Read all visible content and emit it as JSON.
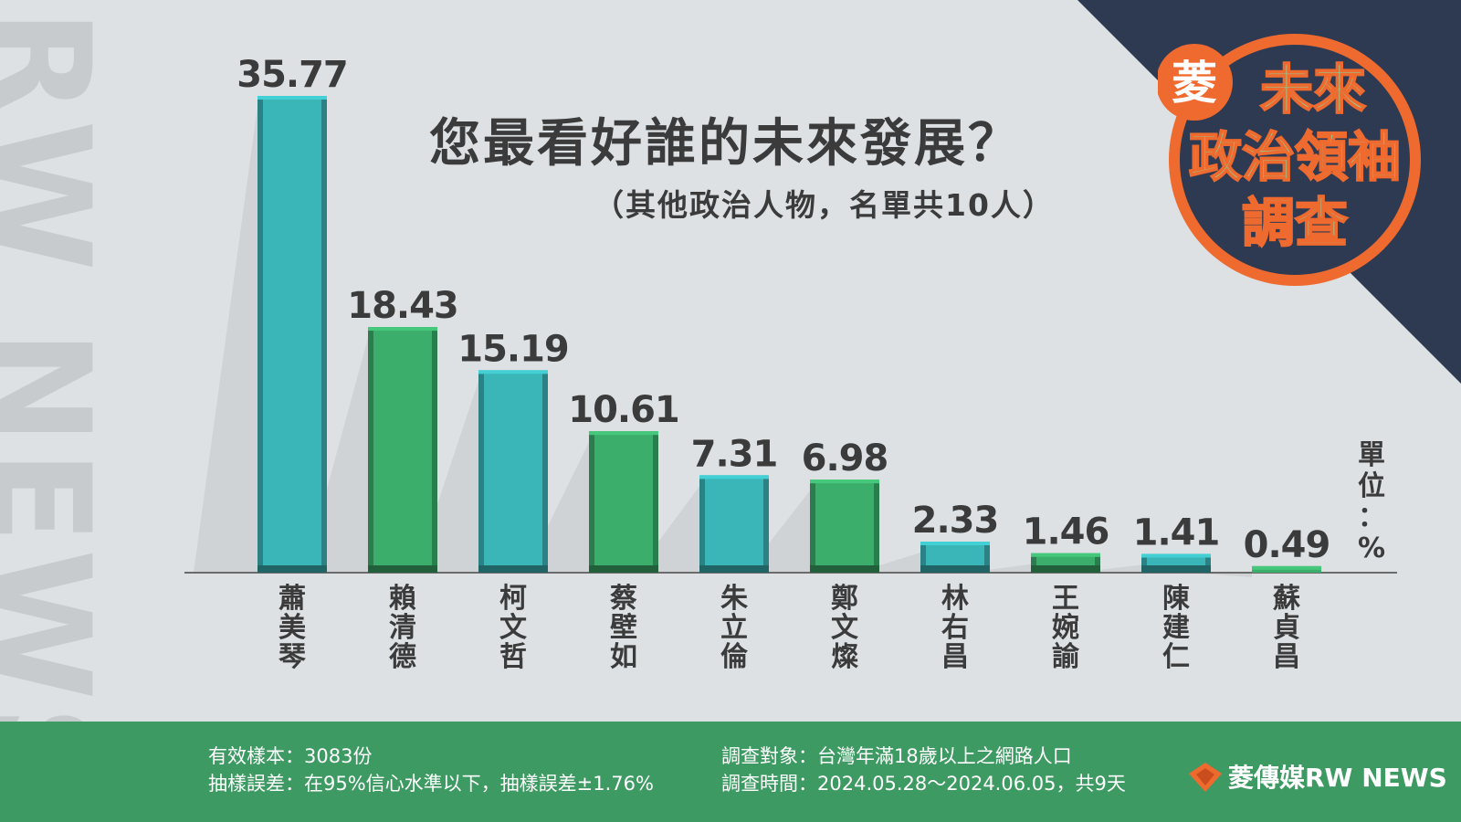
{
  "watermark": "RW NEWS",
  "badge": {
    "mark": "菱",
    "line1": "未來",
    "line2": "政治領袖",
    "line3": "調查"
  },
  "title": "您最看好誰的未來發展？",
  "subtitle": "（其他政治人物，名單共10人）",
  "unit": [
    "單",
    "位",
    "：",
    "%"
  ],
  "colors": {
    "teal": "#3ab5b8",
    "green": "#3cae6b",
    "navy": "#2d3a52",
    "orange": "#ef6a2e",
    "footer": "#3e9a63"
  },
  "chart_data": {
    "type": "bar",
    "categories": [
      "蕭美琴",
      "賴清德",
      "柯文哲",
      "蔡壁如",
      "朱立倫",
      "鄭文燦",
      "林右昌",
      "王婉諭",
      "陳建仁",
      "蘇貞昌"
    ],
    "values": [
      35.77,
      18.43,
      15.19,
      10.61,
      7.31,
      6.98,
      2.33,
      1.46,
      1.41,
      0.49
    ],
    "value_labels": [
      "35.77",
      "18.43",
      "15.19",
      "10.61",
      "7.31",
      "6.98",
      "2.33",
      "1.46",
      "1.41",
      "0.49"
    ],
    "bar_colors": [
      "#3ab5b8",
      "#3cae6b",
      "#3ab5b8",
      "#3cae6b",
      "#3ab5b8",
      "#3cae6b",
      "#3ab5b8",
      "#3cae6b",
      "#3ab5b8",
      "#3cae6b"
    ],
    "title": "您最看好誰的未來發展？",
    "ylim": [
      0,
      35.77
    ],
    "grid": false
  },
  "footer": {
    "sample": "有效樣本：3083份",
    "error": "抽樣誤差：在95%信心水準以下，抽樣誤差±1.76%",
    "target": "調查對象：台灣年滿18歲以上之網路人口",
    "period": "調查時間：2024.05.28～2024.06.05，共9天",
    "brand": "菱傳媒RW NEWS"
  }
}
